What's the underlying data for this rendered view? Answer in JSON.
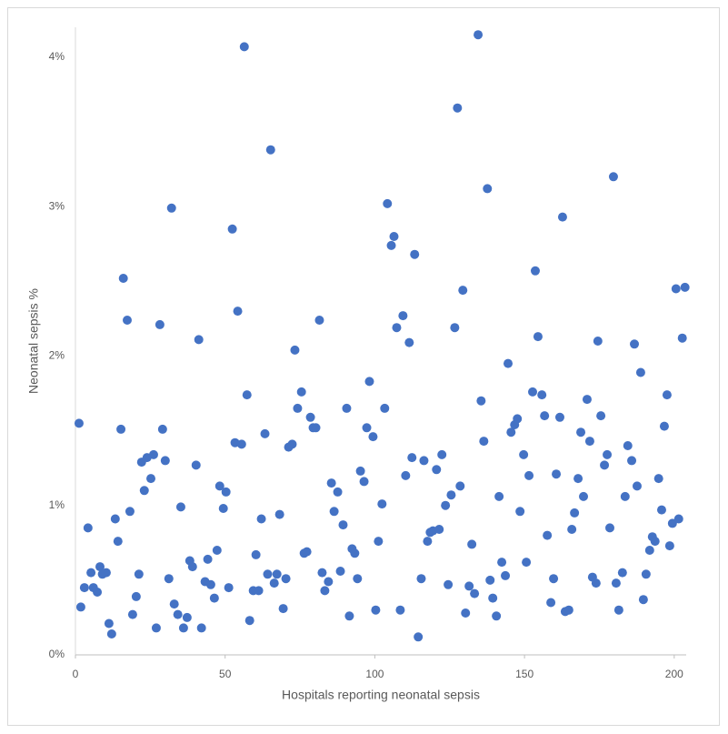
{
  "chart_data": {
    "type": "scatter",
    "xlabel": "Hospitals reporting neonatal sepsis",
    "ylabel": "Neonatal sepsis %",
    "color": "#4472c4",
    "xlim": [
      0,
      204
    ],
    "xticks": [
      0,
      50,
      100,
      150,
      200
    ],
    "ylim": [
      0,
      4.2
    ],
    "yticks": [
      {
        "value": 0,
        "label": "0%"
      },
      {
        "value": 1,
        "label": "1%"
      },
      {
        "value": 2,
        "label": "2%"
      },
      {
        "value": 3,
        "label": "3%"
      },
      {
        "value": 4,
        "label": "4%"
      }
    ],
    "grid": false,
    "x": [
      1.2,
      1.8,
      3,
      4.2,
      5.2,
      6,
      7.3,
      8.2,
      9,
      10.3,
      11.2,
      12.1,
      13.3,
      14.2,
      15.2,
      16,
      17.3,
      18.2,
      19.1,
      20.3,
      21.2,
      22.1,
      23,
      23.9,
      25.2,
      26.1,
      27,
      28.2,
      29.1,
      30,
      31.2,
      32.1,
      33,
      34.2,
      35.2,
      36.1,
      37.3,
      38.2,
      39.1,
      40.3,
      41.2,
      42.1,
      43.3,
      44.2,
      45.2,
      46.4,
      47.3,
      48.2,
      49.4,
      50.3,
      51.2,
      52.4,
      53.3,
      54.2,
      55.5,
      56.4,
      57.3,
      58.2,
      59.4,
      60.3,
      61.2,
      62.1,
      63.3,
      64.2,
      65.2,
      66.4,
      67.3,
      68.2,
      69.4,
      70.3,
      71.2,
      72.4,
      73.3,
      74.2,
      75.5,
      76.4,
      77.3,
      78.5,
      79.4,
      80.3,
      81.5,
      82.4,
      83.3,
      84.5,
      85.5,
      86.4,
      87.6,
      88.5,
      89.4,
      90.6,
      91.5,
      92.4,
      93.3,
      94.2,
      95.2,
      96.4,
      97.3,
      98.2,
      99.4,
      100.3,
      101.2,
      102.4,
      103.3,
      104.2,
      105.5,
      106.4,
      107.3,
      108.5,
      109.4,
      110.3,
      111.5,
      112.4,
      113.3,
      114.5,
      115.5,
      116.4,
      117.6,
      118.5,
      119.4,
      120.6,
      121.5,
      122.4,
      123.6,
      124.5,
      125.5,
      126.7,
      127.6,
      128.5,
      129.4,
      130.3,
      131.5,
      132.4,
      133.3,
      134.5,
      135.5,
      136.4,
      137.6,
      138.5,
      139.4,
      140.6,
      141.5,
      142.4,
      143.6,
      144.5,
      145.5,
      146.7,
      147.6,
      148.5,
      149.7,
      150.6,
      151.5,
      152.7,
      153.6,
      154.5,
      155.8,
      156.7,
      157.6,
      158.8,
      159.7,
      160.6,
      161.8,
      162.7,
      163.6,
      164.8,
      165.8,
      166.7,
      167.9,
      168.8,
      169.7,
      170.9,
      171.8,
      172.7,
      173.9,
      174.5,
      175.5,
      176.7,
      177.6,
      178.5,
      179.7,
      180.6,
      181.5,
      182.7,
      183.6,
      184.5,
      185.8,
      186.7,
      187.6,
      188.8,
      189.7,
      190.6,
      191.8,
      192.7,
      193.6,
      194.8,
      195.8,
      196.7,
      197.6,
      198.5,
      199.4,
      200.6,
      201.5,
      202.7,
      203.6
    ],
    "values": [
      1.55,
      0.32,
      0.45,
      0.85,
      0.55,
      0.45,
      0.42,
      0.59,
      0.54,
      0.55,
      0.21,
      0.14,
      0.91,
      0.76,
      1.51,
      2.52,
      2.24,
      0.96,
      0.27,
      0.39,
      0.54,
      1.29,
      1.1,
      1.32,
      1.18,
      1.34,
      0.18,
      2.21,
      1.51,
      1.3,
      0.51,
      2.99,
      0.34,
      0.27,
      0.99,
      0.18,
      0.25,
      0.63,
      0.59,
      1.27,
      2.11,
      0.18,
      0.49,
      0.64,
      0.47,
      0.38,
      0.7,
      1.13,
      0.98,
      1.09,
      0.45,
      2.85,
      1.42,
      2.3,
      1.41,
      4.07,
      1.74,
      0.23,
      0.43,
      0.67,
      0.43,
      0.91,
      1.48,
      0.54,
      3.38,
      0.48,
      0.54,
      0.94,
      0.31,
      0.51,
      1.39,
      1.41,
      2.04,
      1.65,
      1.76,
      0.68,
      0.69,
      1.59,
      1.52,
      1.52,
      2.24,
      0.55,
      0.43,
      0.49,
      1.15,
      0.96,
      1.09,
      0.56,
      0.87,
      1.65,
      0.26,
      0.71,
      0.68,
      0.51,
      1.23,
      1.16,
      1.52,
      1.83,
      1.46,
      0.3,
      0.76,
      1.01,
      1.65,
      3.02,
      2.74,
      2.8,
      2.19,
      0.3,
      2.27,
      1.2,
      2.09,
      1.32,
      2.68,
      0.12,
      0.51,
      1.3,
      0.76,
      0.82,
      0.83,
      1.24,
      0.84,
      1.34,
      1,
      0.47,
      1.07,
      2.19,
      3.66,
      1.13,
      2.44,
      0.28,
      0.46,
      0.74,
      0.41,
      4.15,
      1.7,
      1.43,
      3.12,
      0.5,
      0.38,
      0.26,
      1.06,
      0.62,
      0.53,
      1.95,
      1.49,
      1.54,
      1.58,
      0.96,
      1.34,
      0.62,
      1.2,
      1.76,
      2.57,
      2.13,
      1.74,
      1.6,
      0.8,
      0.35,
      0.51,
      1.21,
      1.59,
      2.93,
      0.29,
      0.3,
      0.84,
      0.95,
      1.18,
      1.49,
      1.06,
      1.71,
      1.43,
      0.52,
      0.48,
      2.1,
      1.6,
      1.27,
      1.34,
      0.85,
      3.2,
      0.48,
      0.3,
      0.55,
      1.06,
      1.4,
      1.3,
      2.08,
      1.13,
      1.89,
      0.37,
      0.54,
      0.7,
      0.79,
      0.76,
      1.18,
      0.97,
      1.53,
      1.74,
      0.73,
      0.88,
      2.45,
      0.91,
      2.12,
      2.46
    ]
  }
}
